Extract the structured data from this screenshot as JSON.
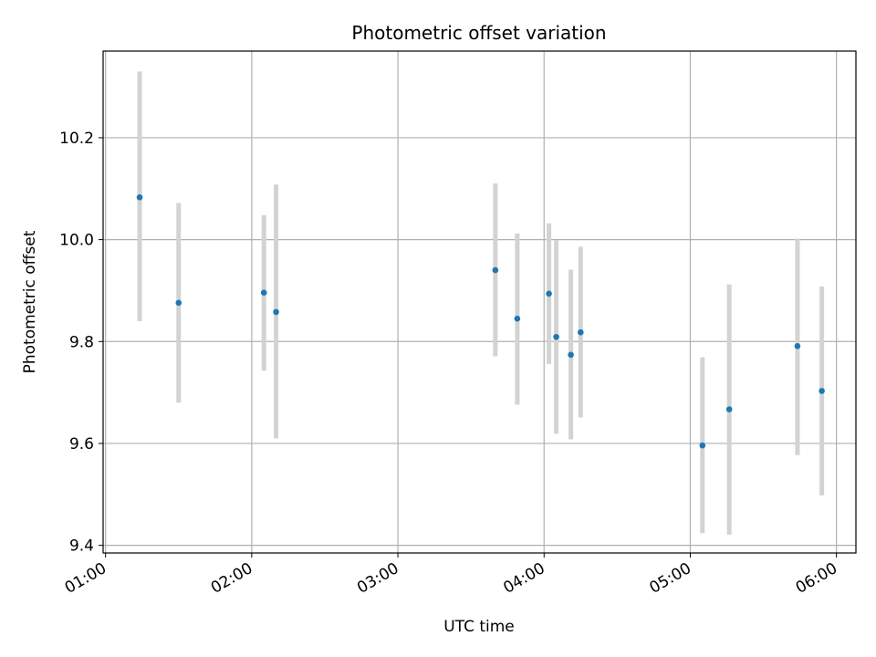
{
  "chart_data": {
    "type": "scatter",
    "title": "Photometric offset variation",
    "xlabel": "UTC time",
    "ylabel": "Photometric offset",
    "x_axis_type": "time",
    "xlim": [
      "00:59",
      "06:08"
    ],
    "ylim": [
      9.385,
      10.37
    ],
    "grid": true,
    "x_ticks": [
      "01:00",
      "02:00",
      "03:00",
      "04:00",
      "05:00",
      "06:00"
    ],
    "y_ticks": [
      9.4,
      9.6,
      9.8,
      10.0,
      10.2
    ],
    "y_tick_labels": [
      "9.4",
      "9.6",
      "9.8",
      "10.0",
      "10.2"
    ],
    "colors": {
      "points": "#1f77b4",
      "error_bars": "#d3d3d3",
      "grid": "#b0b0b0"
    },
    "series": [
      {
        "points": [
          {
            "x": "01:14",
            "y": 10.083,
            "ylow": 9.84,
            "yhigh": 10.33
          },
          {
            "x": "01:30",
            "y": 9.876,
            "ylow": 9.68,
            "yhigh": 10.072
          },
          {
            "x": "02:05",
            "y": 9.896,
            "ylow": 9.743,
            "yhigh": 10.048
          },
          {
            "x": "02:10",
            "y": 9.858,
            "ylow": 9.61,
            "yhigh": 10.108
          },
          {
            "x": "03:40",
            "y": 9.94,
            "ylow": 9.771,
            "yhigh": 10.11
          },
          {
            "x": "03:49",
            "y": 9.845,
            "ylow": 9.676,
            "yhigh": 10.012
          },
          {
            "x": "04:02",
            "y": 9.894,
            "ylow": 9.756,
            "yhigh": 10.032
          },
          {
            "x": "04:05",
            "y": 9.809,
            "ylow": 9.619,
            "yhigh": 9.999
          },
          {
            "x": "04:11",
            "y": 9.774,
            "ylow": 9.608,
            "yhigh": 9.941
          },
          {
            "x": "04:15",
            "y": 9.818,
            "ylow": 9.651,
            "yhigh": 9.986
          },
          {
            "x": "05:05",
            "y": 9.596,
            "ylow": 9.424,
            "yhigh": 9.769
          },
          {
            "x": "05:16",
            "y": 9.667,
            "ylow": 9.421,
            "yhigh": 9.912
          },
          {
            "x": "05:44",
            "y": 9.791,
            "ylow": 9.577,
            "yhigh": 10.002
          },
          {
            "x": "05:54",
            "y": 9.703,
            "ylow": 9.498,
            "yhigh": 9.908
          }
        ]
      }
    ]
  }
}
